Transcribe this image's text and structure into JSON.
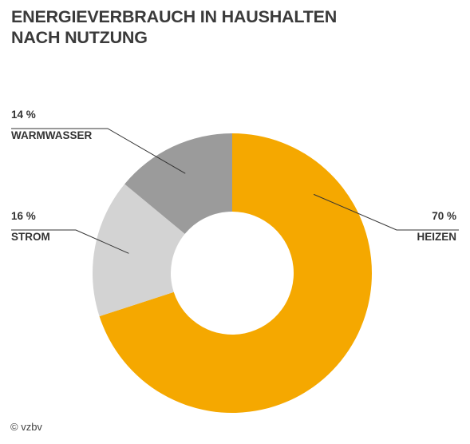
{
  "title_lines": [
    "ENERGIEVERBRAUCH IN HAUSHALTEN",
    "NACH NUTZUNG"
  ],
  "credit": "© vzbv",
  "chart_data": {
    "type": "pie",
    "variant": "donut",
    "title": "ENERGIEVERBRAUCH IN HAUSHALTEN NACH NUTZUNG",
    "unit": "%",
    "start_angle_deg": 0,
    "direction": "clockwise",
    "slices": [
      {
        "key": "heizen",
        "label": "HEIZEN",
        "value": 70,
        "value_label": "70 %",
        "color": "#f5a800",
        "label_side": "right"
      },
      {
        "key": "strom",
        "label": "STROM",
        "value": 16,
        "value_label": "16 %",
        "color": "#d3d3d3",
        "label_side": "left"
      },
      {
        "key": "warmwasser",
        "label": "WARMWASSER",
        "value": 14,
        "value_label": "14 %",
        "color": "#9b9b9b",
        "label_side": "left"
      }
    ]
  }
}
